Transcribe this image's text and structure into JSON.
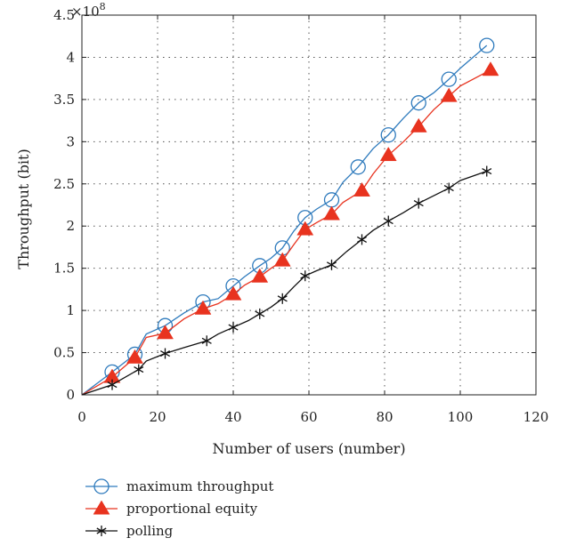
{
  "chart_data": {
    "type": "line",
    "xlabel": "Number of users (number)",
    "ylabel": "Throughput (bit)",
    "y_multiplier": "×10",
    "y_multiplier_exp": "8",
    "xlim": [
      0,
      120
    ],
    "ylim": [
      0,
      4.5
    ],
    "x_ticks": [
      0,
      20,
      40,
      60,
      80,
      100,
      120
    ],
    "y_ticks": [
      0,
      0.5,
      1,
      1.5,
      2,
      2.5,
      3,
      3.5,
      4,
      4.5
    ],
    "grid": true,
    "legend_position": "below",
    "series": [
      {
        "name": "maximum throughput",
        "color": "#2f7bbd",
        "marker": "circle",
        "x": [
          0,
          8,
          14,
          17,
          22,
          27,
          32,
          36,
          40,
          43,
          47,
          50,
          53,
          56,
          59,
          62,
          66,
          69,
          73,
          77,
          81,
          85,
          89,
          93,
          97,
          100,
          107
        ],
        "y": [
          0,
          0.27,
          0.48,
          0.72,
          0.82,
          0.97,
          1.1,
          1.14,
          1.29,
          1.4,
          1.53,
          1.62,
          1.74,
          1.94,
          2.1,
          2.2,
          2.31,
          2.52,
          2.7,
          2.92,
          3.08,
          3.28,
          3.46,
          3.58,
          3.74,
          3.87,
          4.14
        ],
        "markers": [
          1,
          2,
          4,
          6,
          8,
          10,
          12,
          14,
          16,
          18,
          20,
          22,
          24,
          26
        ]
      },
      {
        "name": "proportional equity",
        "color": "#e8331f",
        "marker": "triangle",
        "x": [
          0,
          8,
          14,
          17,
          22,
          27,
          32,
          36,
          40,
          43,
          47,
          50,
          53,
          56,
          59,
          62,
          66,
          69,
          74,
          77,
          81,
          85,
          89,
          93,
          97,
          100,
          108
        ],
        "y": [
          0,
          0.21,
          0.44,
          0.68,
          0.73,
          0.9,
          1.02,
          1.08,
          1.19,
          1.3,
          1.4,
          1.5,
          1.59,
          1.78,
          1.96,
          2.04,
          2.14,
          2.28,
          2.42,
          2.62,
          2.84,
          3.0,
          3.18,
          3.38,
          3.54,
          3.66,
          3.85
        ],
        "markers": [
          1,
          2,
          4,
          6,
          8,
          10,
          12,
          14,
          16,
          18,
          20,
          22,
          24,
          26
        ]
      },
      {
        "name": "polling",
        "color": "#111111",
        "marker": "star",
        "x": [
          0,
          8,
          15,
          17,
          22,
          27,
          33,
          36,
          40,
          44,
          47,
          50,
          53,
          56,
          59,
          62,
          66,
          70,
          74,
          77,
          81,
          85,
          89,
          93,
          97,
          100,
          107
        ],
        "y": [
          0,
          0.12,
          0.3,
          0.4,
          0.49,
          0.56,
          0.64,
          0.72,
          0.8,
          0.88,
          0.96,
          1.04,
          1.14,
          1.28,
          1.41,
          1.47,
          1.54,
          1.7,
          1.84,
          1.95,
          2.06,
          2.16,
          2.27,
          2.36,
          2.45,
          2.54,
          2.65
        ],
        "markers": [
          1,
          2,
          4,
          6,
          8,
          10,
          12,
          14,
          16,
          18,
          20,
          22,
          24,
          26
        ]
      }
    ]
  }
}
